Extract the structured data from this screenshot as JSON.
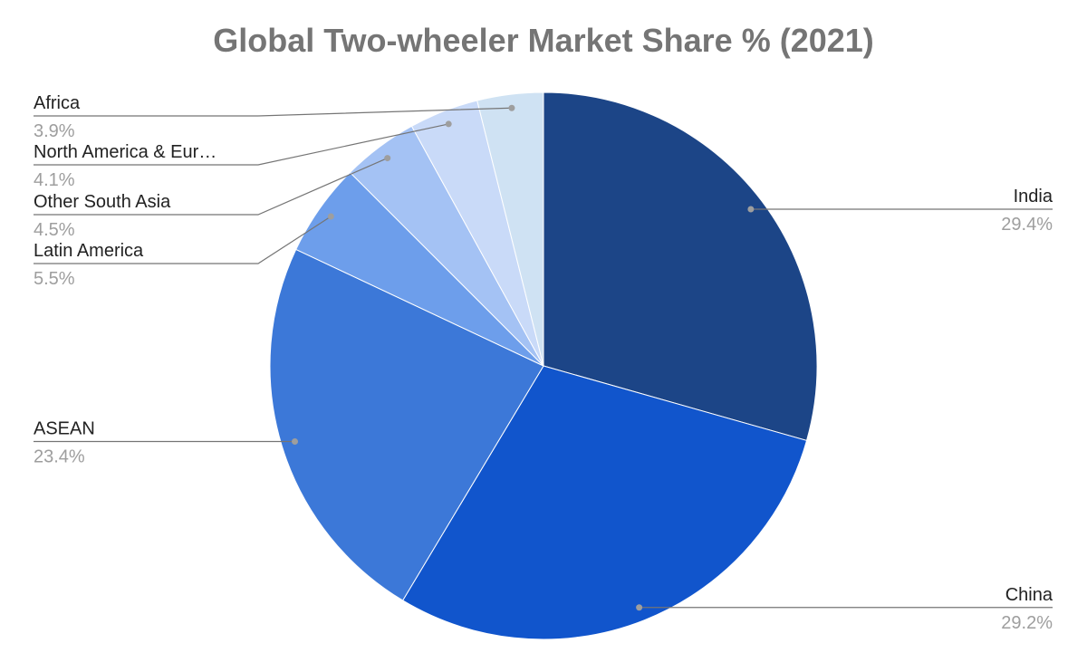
{
  "chart_data": {
    "type": "pie",
    "title": "Global Two-wheeler Market Share % (2021)",
    "categories": [
      "India",
      "China",
      "ASEAN",
      "Latin America",
      "Other South Asia",
      "North America & Eur…",
      "Africa"
    ],
    "values": [
      29.4,
      29.2,
      23.4,
      5.5,
      4.5,
      4.1,
      3.9
    ],
    "value_labels": [
      "29.4%",
      "29.2%",
      "23.4%",
      "5.5%",
      "4.5%",
      "4.1%",
      "3.9%"
    ],
    "colors": [
      "#1c4587",
      "#1155cc",
      "#3c78d8",
      "#6d9eeb",
      "#a4c2f4",
      "#c9daf8",
      "#cfe2f3"
    ]
  }
}
